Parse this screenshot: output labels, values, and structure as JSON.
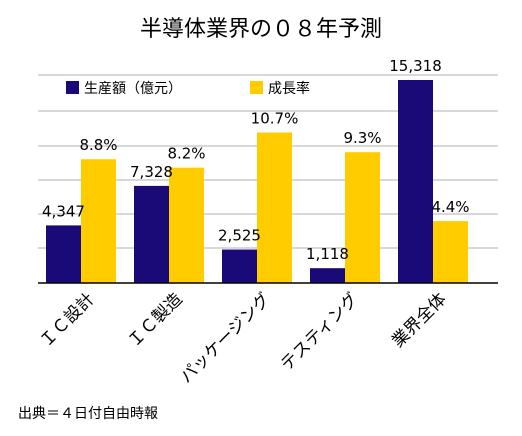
{
  "chart_data": {
    "type": "bar",
    "title": "半導体業界の０８年予測",
    "categories": [
      "ＩＣ設計",
      "ＩＣ製造",
      "パッケージング",
      "テスティング",
      "業界全体"
    ],
    "series": [
      {
        "name": "生産額（億元）",
        "color": "#1a0a78",
        "values": [
          4347,
          7328,
          2525,
          1118,
          15318
        ],
        "labels": [
          "4,347",
          "7,328",
          "2,525",
          "1,118",
          "15,318"
        ]
      },
      {
        "name": "成長率",
        "color": "#ffcc00",
        "values": [
          8.8,
          8.2,
          10.7,
          9.3,
          4.4
        ],
        "labels": [
          "8.8%",
          "8.2%",
          "10.7%",
          "9.3%",
          "4.4%"
        ]
      }
    ],
    "grid": true,
    "legend_position": "top-left"
  },
  "source_note": "出典＝４日付自由時報"
}
